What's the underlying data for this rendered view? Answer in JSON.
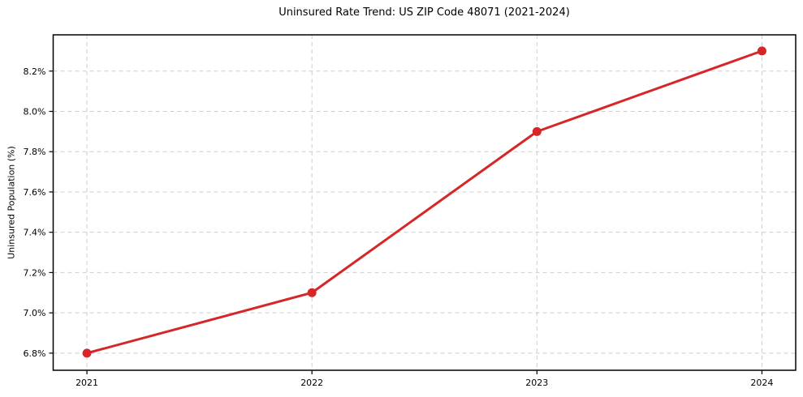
{
  "page": {
    "background": "#ffffff"
  },
  "chart_data": {
    "type": "line",
    "title": "Uninsured Rate Trend: US ZIP Code 48071 (2021-2024)",
    "xlabel": "",
    "ylabel": "Uninsured Population (%)",
    "x": [
      2021,
      2022,
      2023,
      2024
    ],
    "series": [
      {
        "name": "Uninsured rate",
        "values": [
          6.8,
          7.1,
          7.9,
          8.3
        ],
        "color": "#d62728",
        "marker": "circle"
      }
    ],
    "xticks": {
      "values": [
        2021,
        2022,
        2023,
        2024
      ],
      "labels": [
        "2021",
        "2022",
        "2023",
        "2024"
      ]
    },
    "yticks": {
      "values": [
        6.8,
        7.0,
        7.2,
        7.4,
        7.6,
        7.8,
        8.0,
        8.2
      ],
      "labels": [
        "6.8%",
        "7.0%",
        "7.2%",
        "7.4%",
        "7.6%",
        "7.8%",
        "8.0%",
        "8.2%"
      ]
    },
    "xlim": [
      2020.85,
      2024.15
    ],
    "ylim": [
      6.715,
      8.38
    ],
    "grid": true,
    "grid_style": "dashed",
    "legend": "none",
    "line_width": 3,
    "marker_size": 5.5,
    "grid_color": "#cdcdcd",
    "axis_color": "#000000",
    "text_color": "#000000",
    "tick_font_size": 11,
    "title_font_size": 13
  }
}
